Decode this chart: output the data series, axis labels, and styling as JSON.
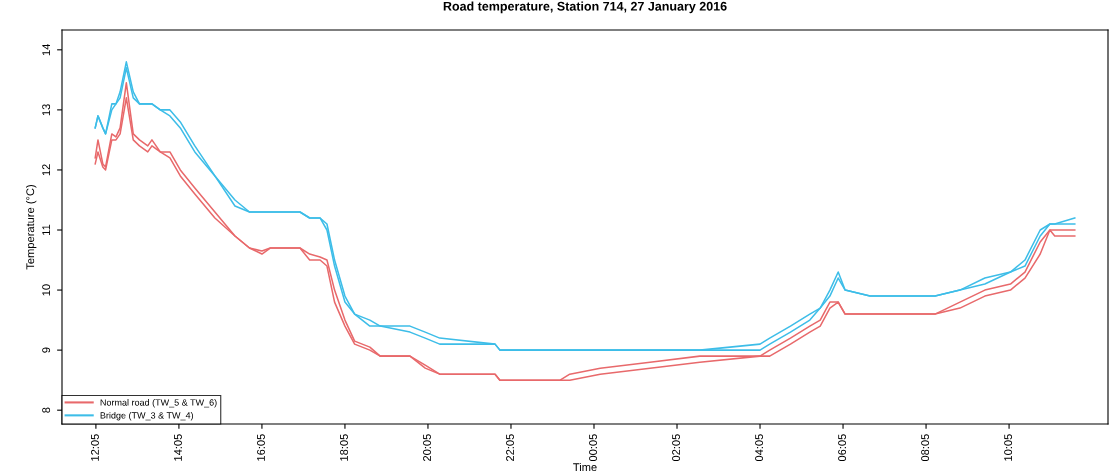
{
  "chart_data": {
    "type": "line",
    "title": "Road temperature, Station 714, 27 January 2016",
    "xlabel": "Time",
    "ylabel": "Temperature (°C)",
    "x": [
      "2016-01-27T12:04",
      "2016-01-27T12:08",
      "2016-01-27T12:15",
      "2016-01-27T12:19",
      "2016-01-27T12:28",
      "2016-01-27T12:34",
      "2016-01-27T12:40",
      "2016-01-27T12:49",
      "2016-01-27T12:59",
      "2016-01-27T13:08",
      "2016-01-27T13:20",
      "2016-01-27T13:26",
      "2016-01-27T13:38",
      "2016-01-27T13:52",
      "2016-01-27T14:07",
      "2016-01-27T14:28",
      "2016-01-27T14:57",
      "2016-01-27T15:26",
      "2016-01-27T15:47",
      "2016-01-27T16:05",
      "2016-01-27T16:17",
      "2016-01-27T17:00",
      "2016-01-27T17:14",
      "2016-01-27T17:29",
      "2016-01-27T17:39",
      "2016-01-27T17:50",
      "2016-01-27T18:05",
      "2016-01-27T18:19",
      "2016-01-27T18:41",
      "2016-01-27T18:56",
      "2016-01-27T19:39",
      "2016-01-27T20:01",
      "2016-01-27T20:22",
      "2016-01-27T21:42",
      "2016-01-27T21:49",
      "2016-01-27T23:16",
      "2016-01-27T23:30",
      "2016-01-28T00:14",
      "2016-01-28T01:26",
      "2016-01-28T02:38",
      "2016-01-28T04:05",
      "2016-01-28T04:19",
      "2016-01-28T04:49",
      "2016-01-28T05:17",
      "2016-01-28T05:32",
      "2016-01-28T05:46",
      "2016-01-28T05:58",
      "2016-01-28T06:08",
      "2016-01-28T06:44",
      "2016-01-28T08:18",
      "2016-01-28T08:54",
      "2016-01-28T09:30",
      "2016-01-28T10:07",
      "2016-01-28T10:28",
      "2016-01-28T10:50",
      "2016-01-28T11:04",
      "2016-01-28T11:11",
      "2016-01-28T11:40"
    ],
    "series": [
      {
        "name": "Normal road (TW_5 & TW_6)",
        "color": "#e8696b",
        "values": [
          12.2,
          12.5,
          12.1,
          12.05,
          12.6,
          12.55,
          12.7,
          13.45,
          12.6,
          12.5,
          12.4,
          12.5,
          12.3,
          12.3,
          12.0,
          11.7,
          11.3,
          10.9,
          10.7,
          10.65,
          10.7,
          10.7,
          10.6,
          10.55,
          10.5,
          10.0,
          9.5,
          9.15,
          9.05,
          8.9,
          8.9,
          8.75,
          8.6,
          8.6,
          8.5,
          8.5,
          8.6,
          8.7,
          8.8,
          8.9,
          8.9,
          9.0,
          9.2,
          9.4,
          9.5,
          9.8,
          9.8,
          9.6,
          9.6,
          9.6,
          9.8,
          10.0,
          10.1,
          10.3,
          10.8,
          11.0,
          11.0,
          11.0
        ]
      },
      {
        "color": "#e8696b",
        "values": [
          12.1,
          12.3,
          12.05,
          12.0,
          12.5,
          12.5,
          12.6,
          13.2,
          12.5,
          12.4,
          12.3,
          12.4,
          12.3,
          12.2,
          11.9,
          11.6,
          11.2,
          10.9,
          10.7,
          10.6,
          10.7,
          10.7,
          10.5,
          10.5,
          10.4,
          9.8,
          9.4,
          9.1,
          9.0,
          8.9,
          8.9,
          8.7,
          8.6,
          8.6,
          8.5,
          8.5,
          8.5,
          8.6,
          8.7,
          8.8,
          8.9,
          8.9,
          9.1,
          9.3,
          9.4,
          9.7,
          9.8,
          9.6,
          9.6,
          9.6,
          9.7,
          9.9,
          10.0,
          10.2,
          10.6,
          11.0,
          10.9,
          10.9
        ]
      },
      {
        "name": "Bridge (TW_3 & TW_4)",
        "color": "#3dbde8",
        "values": [
          12.7,
          12.9,
          12.7,
          12.6,
          13.1,
          13.1,
          13.3,
          13.8,
          13.3,
          13.1,
          13.1,
          13.1,
          13.0,
          13.0,
          12.8,
          12.4,
          11.9,
          11.5,
          11.3,
          11.3,
          11.3,
          11.3,
          11.2,
          11.2,
          11.1,
          10.5,
          9.9,
          9.6,
          9.5,
          9.4,
          9.4,
          9.3,
          9.2,
          9.1,
          9.0,
          9.0,
          9.0,
          9.0,
          9.0,
          9.0,
          9.1,
          9.2,
          9.4,
          9.6,
          9.7,
          10.0,
          10.3,
          10.0,
          9.9,
          9.9,
          10.0,
          10.2,
          10.3,
          10.5,
          11.0,
          11.1,
          11.1,
          11.2
        ]
      },
      {
        "color": "#3dbde8",
        "values": [
          12.7,
          12.9,
          12.7,
          12.6,
          13.0,
          13.1,
          13.2,
          13.7,
          13.2,
          13.1,
          13.1,
          13.1,
          13.0,
          12.9,
          12.7,
          12.3,
          11.9,
          11.4,
          11.3,
          11.3,
          11.3,
          11.3,
          11.2,
          11.2,
          11.0,
          10.4,
          9.8,
          9.6,
          9.4,
          9.4,
          9.3,
          9.2,
          9.1,
          9.1,
          9.0,
          9.0,
          9.0,
          9.0,
          9.0,
          9.0,
          9.0,
          9.1,
          9.3,
          9.5,
          9.7,
          9.9,
          10.2,
          10.0,
          9.9,
          9.9,
          10.0,
          10.1,
          10.3,
          10.4,
          10.9,
          11.1,
          11.1,
          11.1
        ]
      }
    ],
    "xlim": [
      "2016-01-27T11:16",
      "2016-01-28T12:28"
    ],
    "ylim": [
      7.77,
      14.33
    ],
    "xticks": [
      {
        "value": "2016-01-27T12:05",
        "label": "12:05"
      },
      {
        "value": "2016-01-27T14:05",
        "label": "14:05"
      },
      {
        "value": "2016-01-27T16:05",
        "label": "16:05"
      },
      {
        "value": "2016-01-27T18:05",
        "label": "18:05"
      },
      {
        "value": "2016-01-27T20:05",
        "label": "20:05"
      },
      {
        "value": "2016-01-27T22:05",
        "label": "22:05"
      },
      {
        "value": "2016-01-28T00:05",
        "label": "00:05"
      },
      {
        "value": "2016-01-28T02:05",
        "label": "02:05"
      },
      {
        "value": "2016-01-28T04:05",
        "label": "04:05"
      },
      {
        "value": "2016-01-28T06:05",
        "label": "06:05"
      },
      {
        "value": "2016-01-28T08:05",
        "label": "08:05"
      },
      {
        "value": "2016-01-28T10:05",
        "label": "10:05"
      }
    ],
    "yticks": [
      8,
      9,
      10,
      11,
      12,
      13,
      14
    ],
    "grid": false,
    "legend": "bottom left"
  }
}
